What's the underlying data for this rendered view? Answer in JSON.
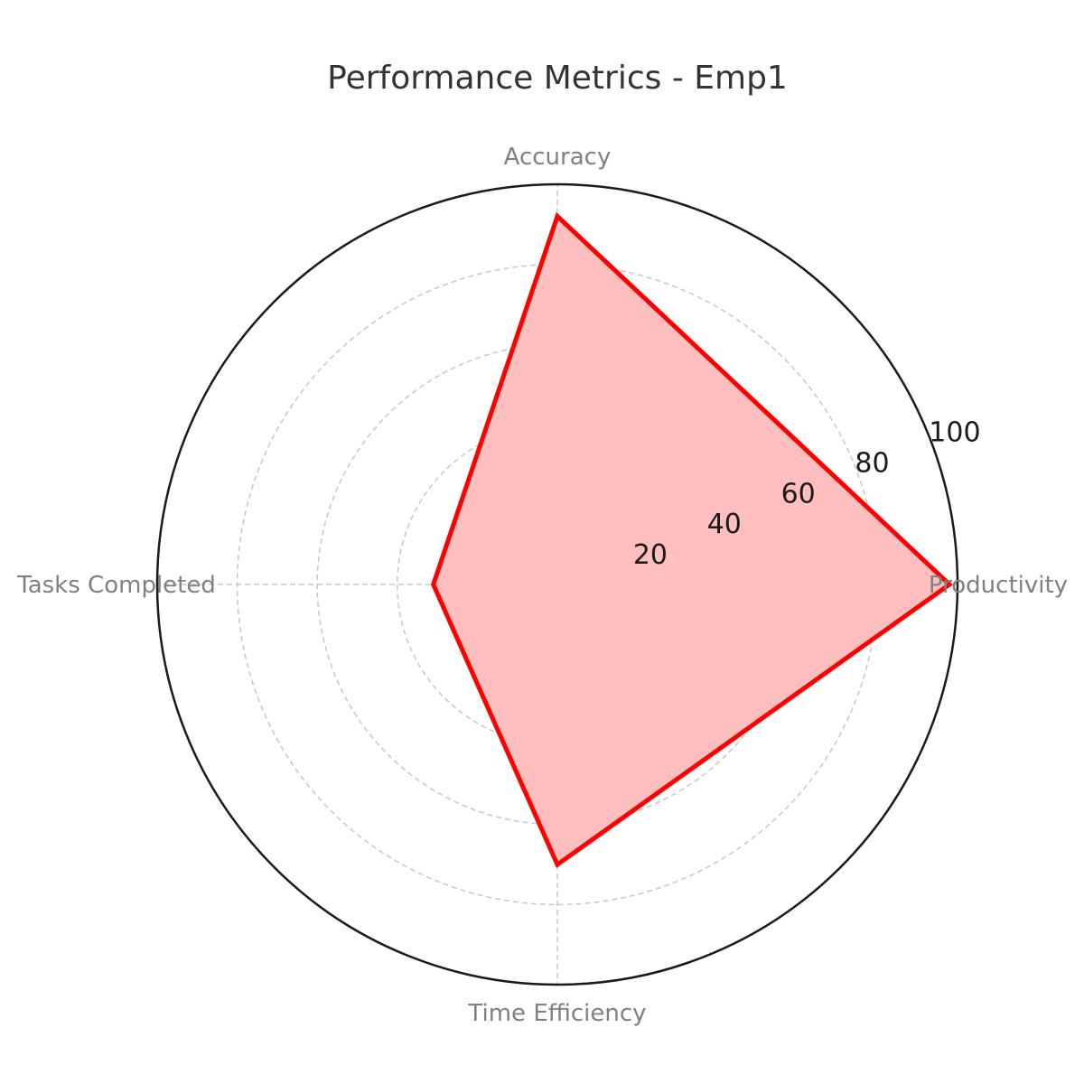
{
  "chart_data": {
    "type": "radar",
    "title": "Performance Metrics - Emp1",
    "categories": [
      "Productivity",
      "Accuracy",
      "Tasks Completed",
      "Time Efficiency"
    ],
    "series": [
      {
        "values": [
          98,
          92,
          31,
          70
        ]
      }
    ],
    "rlim": [
      0,
      100
    ],
    "r_ticks": [
      20,
      40,
      60,
      80,
      100
    ],
    "grid": true,
    "colors": {
      "line": "#ff0000",
      "fill": "#ffbfbf",
      "frame": "#1a1a1a",
      "grid": "#c8c8c8"
    }
  }
}
